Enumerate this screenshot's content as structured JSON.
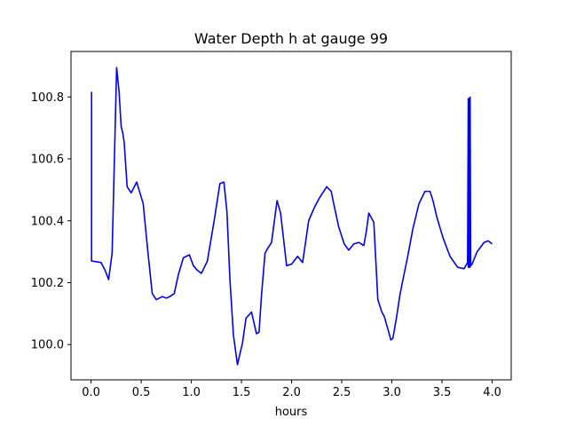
{
  "chart_data": {
    "type": "line",
    "title": "Water Depth h at gauge 99",
    "xlabel": "hours",
    "ylabel": "",
    "xlim": [
      -0.2,
      4.19
    ],
    "ylim": [
      99.886,
      100.947
    ],
    "xticks": [
      0.0,
      0.5,
      1.0,
      1.5,
      2.0,
      2.5,
      3.0,
      3.5,
      4.0
    ],
    "xtick_labels": [
      "0.0",
      "0.5",
      "1.0",
      "1.5",
      "2.0",
      "2.5",
      "3.0",
      "3.5",
      "4.0"
    ],
    "yticks": [
      100.0,
      100.2,
      100.4,
      100.6,
      100.8
    ],
    "ytick_labels": [
      "100.0",
      "100.2",
      "100.4",
      "100.6",
      "100.8"
    ],
    "grid": false,
    "legend": "none",
    "series": [
      {
        "color": "#0000ff",
        "x": [
          0.0,
          0.005,
          0.005,
          0.1,
          0.14,
          0.175,
          0.21,
          0.255,
          0.28,
          0.3,
          0.315,
          0.33,
          0.36,
          0.4,
          0.455,
          0.52,
          0.565,
          0.61,
          0.65,
          0.71,
          0.75,
          0.785,
          0.83,
          0.87,
          0.92,
          0.98,
          1.02,
          1.06,
          1.1,
          1.16,
          1.23,
          1.285,
          1.325,
          1.355,
          1.385,
          1.42,
          1.46,
          1.51,
          1.545,
          1.6,
          1.65,
          1.675,
          1.7,
          1.735,
          1.76,
          1.8,
          1.855,
          1.89,
          1.95,
          2.0,
          2.06,
          2.11,
          2.17,
          2.23,
          2.28,
          2.35,
          2.395,
          2.42,
          2.47,
          2.525,
          2.57,
          2.62,
          2.67,
          2.72,
          2.745,
          2.77,
          2.82,
          2.86,
          2.9,
          2.925,
          2.96,
          2.99,
          3.01,
          3.045,
          3.08,
          3.12,
          3.155,
          3.21,
          3.27,
          3.33,
          3.38,
          3.41,
          3.45,
          3.51,
          3.58,
          3.655,
          3.72,
          3.755,
          3.762,
          3.762,
          3.768,
          3.768,
          3.774,
          3.774,
          3.78,
          3.78,
          3.786,
          3.8,
          3.85,
          3.92,
          3.96,
          4.0
        ],
        "y": [
          100.815,
          100.815,
          100.27,
          100.265,
          100.24,
          100.21,
          100.295,
          100.895,
          100.815,
          100.705,
          100.685,
          100.655,
          100.51,
          100.49,
          100.525,
          100.455,
          100.305,
          100.165,
          100.145,
          100.155,
          100.15,
          100.155,
          100.165,
          100.225,
          100.28,
          100.29,
          100.255,
          100.24,
          100.23,
          100.27,
          100.405,
          100.52,
          100.525,
          100.43,
          100.21,
          100.03,
          99.935,
          100.005,
          100.085,
          100.105,
          100.035,
          100.04,
          100.16,
          100.295,
          100.31,
          100.33,
          100.465,
          100.425,
          100.255,
          100.26,
          100.285,
          100.265,
          100.4,
          100.445,
          100.475,
          100.51,
          100.495,
          100.455,
          100.38,
          100.325,
          100.305,
          100.325,
          100.33,
          100.32,
          100.365,
          100.425,
          100.395,
          100.145,
          100.105,
          100.09,
          100.05,
          100.015,
          100.02,
          100.085,
          100.16,
          100.225,
          100.28,
          100.375,
          100.455,
          100.495,
          100.495,
          100.465,
          100.41,
          100.345,
          100.285,
          100.25,
          100.245,
          100.265,
          100.795,
          100.25,
          100.25,
          100.795,
          100.795,
          100.25,
          100.25,
          100.8,
          100.255,
          100.26,
          100.3,
          100.33,
          100.335,
          100.325
        ]
      }
    ]
  }
}
